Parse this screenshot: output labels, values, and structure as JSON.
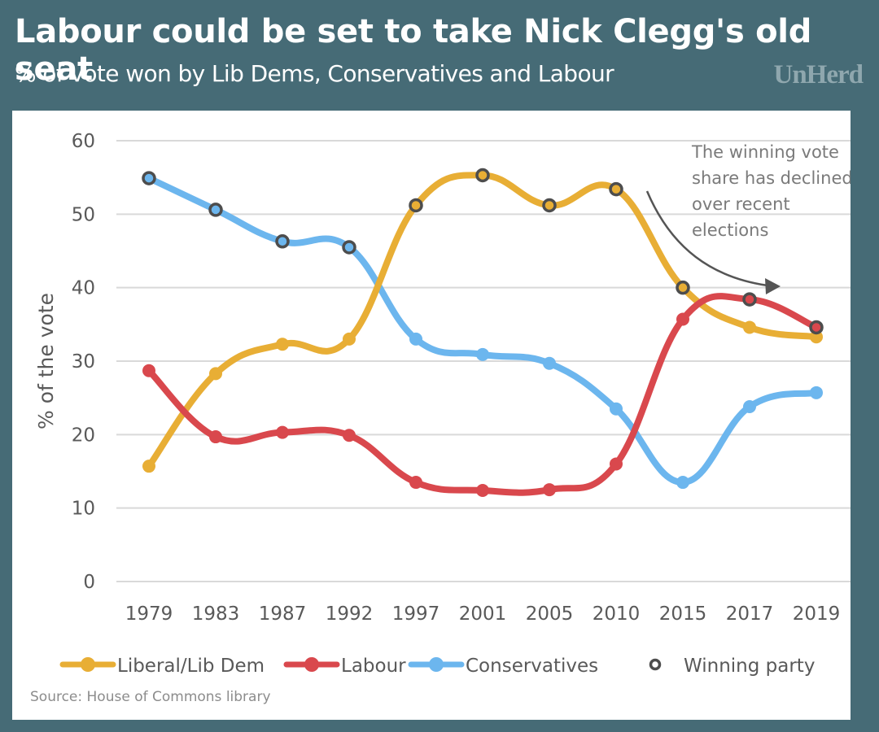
{
  "header": {
    "title": "Labour could be set to take Nick Clegg's old seat",
    "subtitle": "% of vote won by Lib Dems, Conservatives and Labour",
    "brand": "UnHerd"
  },
  "colors": {
    "background": "#466b76",
    "lib_dem": "#e8ae35",
    "labour": "#d9484d",
    "conservatives": "#6cb6ee",
    "winner_ring": "#4d4d4d",
    "grid": "#d9d9d9",
    "annotation": "#7a7a7a"
  },
  "chart_data": {
    "type": "line",
    "title": "Labour could be set to take Nick Clegg's old seat",
    "subtitle": "% of vote won by Lib Dems, Conservatives and Labour",
    "xlabel": "",
    "ylabel": "% of the vote",
    "ylim": [
      0,
      60
    ],
    "yticks": [
      0,
      10,
      20,
      30,
      40,
      50,
      60
    ],
    "grid": true,
    "smooth": true,
    "legend_position": "bottom",
    "x": [
      "1979",
      "1983",
      "1987",
      "1992",
      "1997",
      "2001",
      "2005",
      "2010",
      "2015",
      "2017",
      "2019"
    ],
    "series": [
      {
        "name": "Liberal/Lib Dem",
        "color": "#e8ae35",
        "values": [
          15.7,
          28.3,
          32.3,
          33.0,
          51.2,
          55.3,
          51.2,
          53.4,
          40.0,
          34.6,
          33.3
        ],
        "winner": [
          false,
          false,
          false,
          false,
          true,
          true,
          true,
          true,
          true,
          false,
          false
        ]
      },
      {
        "name": "Labour",
        "color": "#d9484d",
        "values": [
          28.7,
          19.7,
          20.3,
          19.9,
          13.5,
          12.4,
          12.5,
          16.0,
          35.7,
          38.4,
          34.6
        ],
        "winner": [
          false,
          false,
          false,
          false,
          false,
          false,
          false,
          false,
          false,
          true,
          true
        ]
      },
      {
        "name": "Conservatives",
        "color": "#6cb6ee",
        "values": [
          54.9,
          50.6,
          46.3,
          45.5,
          33.0,
          30.9,
          29.7,
          23.5,
          13.5,
          23.8,
          25.7
        ],
        "winner": [
          true,
          true,
          true,
          true,
          false,
          false,
          false,
          false,
          false,
          false,
          false
        ]
      }
    ],
    "legend": [
      "Liberal/Lib Dem",
      "Labour",
      "Conservatives",
      "Winning party"
    ],
    "annotation": {
      "lines": [
        "The winning vote",
        "share has declined",
        "over recent",
        "elections"
      ]
    },
    "source": "Source: House of Commons library"
  }
}
